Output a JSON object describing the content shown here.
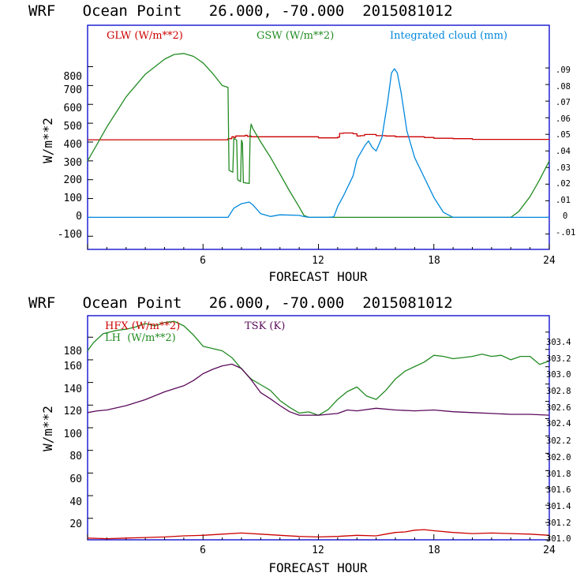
{
  "chart_data": [
    {
      "type": "line",
      "title": "WRF   Ocean Point   26.000, -70.000  2015081012",
      "xlabel": "FORECAST HOUR",
      "ylabel": "W/m**2",
      "xlim": [
        0,
        24
      ],
      "ylim": [
        -170,
        1020
      ],
      "y2lim": [
        -0.0193,
        0.1157
      ],
      "x_tick_labels": [
        "6",
        "12",
        "18",
        "24"
      ],
      "y_tick_labels": [
        "-100",
        "0",
        "100",
        "200",
        "300",
        "400",
        "500",
        "600",
        "700",
        "800"
      ],
      "y2_tick_labels": [
        "-.01",
        "0",
        ".01",
        ".02",
        ".03",
        ".04",
        ".05",
        ".06",
        ".07",
        ".08",
        ".09"
      ],
      "legend": [
        "GLW (W/m**2)",
        "GSW (W/m**2)",
        "Integrated cloud (mm)"
      ],
      "series": [
        {
          "name": "GLW (W/m**2)",
          "color": "#cc0000",
          "axis": "left",
          "step": true,
          "x": [
            0,
            7.3,
            7.5,
            7.6,
            7.7,
            8.2,
            8.3,
            8.4,
            8.5,
            12.0,
            13.0,
            13.1,
            13.3,
            13.8,
            14.0,
            14.2,
            14.4,
            15.0,
            15.5,
            16.0,
            17.0,
            17.5,
            18.0,
            19.0,
            20.0,
            24.0
          ],
          "y": [
            412,
            418,
            428,
            424,
            432,
            436,
            430,
            432,
            428,
            422,
            426,
            446,
            448,
            444,
            432,
            434,
            440,
            434,
            432,
            428,
            428,
            424,
            420,
            418,
            414,
            412
          ]
        },
        {
          "name": "GSW (W/m**2)",
          "color": "#228b22",
          "axis": "left",
          "x": [
            0,
            0.5,
            1,
            2,
            3,
            4,
            4.5,
            5,
            5.5,
            6,
            6.5,
            7,
            7.3,
            7.35,
            7.55,
            7.6,
            7.75,
            7.8,
            7.95,
            8.0,
            8.05,
            8.1,
            8.4,
            8.45,
            8.5,
            8.6,
            9.0,
            9.5,
            10.0,
            10.5,
            11.0,
            11.25,
            11.5,
            22.0,
            22.4,
            23.0,
            23.5,
            24.0
          ],
          "y": [
            300,
            390,
            480,
            640,
            760,
            840,
            865,
            870,
            855,
            820,
            765,
            700,
            690,
            250,
            240,
            420,
            410,
            200,
            190,
            410,
            395,
            185,
            180,
            450,
            495,
            470,
            400,
            320,
            230,
            140,
            55,
            10,
            0,
            0,
            30,
            110,
            200,
            300
          ]
        },
        {
          "name": "Integrated cloud (mm)",
          "color": "#0088dd",
          "axis": "right",
          "x": [
            0,
            7.3,
            7.6,
            8.0,
            8.4,
            8.6,
            9.0,
            9.5,
            10.0,
            11.0,
            11.2,
            11.5,
            12.5,
            12.8,
            13.0,
            13.3,
            13.8,
            14.0,
            14.4,
            14.6,
            14.8,
            15.0,
            15.3,
            15.6,
            15.8,
            15.95,
            16.1,
            16.3,
            16.6,
            17.0,
            17.5,
            18.0,
            18.5,
            19.0,
            24.0
          ],
          "y": [
            0,
            0,
            0.0055,
            0.0082,
            0.0092,
            0.0074,
            0.0022,
            0.0005,
            0.0015,
            0.0012,
            0.0006,
            0,
            0,
            0.0003,
            0.0065,
            0.013,
            0.025,
            0.035,
            0.043,
            0.046,
            0.042,
            0.04,
            0.048,
            0.07,
            0.087,
            0.0895,
            0.087,
            0.075,
            0.052,
            0.036,
            0.024,
            0.012,
            0.003,
            0,
            0
          ]
        }
      ]
    },
    {
      "type": "line",
      "title": "WRF   Ocean Point   26.000, -70.000  2015081012",
      "xlabel": "FORECAST HOUR",
      "ylabel": "W/m**2",
      "xlim": [
        0,
        24
      ],
      "ylim": [
        1,
        199
      ],
      "y2lim": [
        301.0,
        303.59
      ],
      "x_tick_labels": [
        "6",
        "12",
        "18",
        "24"
      ],
      "y_tick_labels": [
        "20",
        "40",
        "60",
        "80",
        "100",
        "120",
        "140",
        "160",
        "180"
      ],
      "y2_tick_labels": [
        "301.0",
        "301.2",
        "301.4",
        "301.6",
        "301.8",
        "302.0",
        "302.2",
        "302.4",
        "302.6",
        "302.8",
        "303.0",
        "303.2",
        "303.4"
      ],
      "legend": [
        "HFX (W/m**2)",
        "LH  (W/m**2)",
        "TSK (K)"
      ],
      "series": [
        {
          "name": "HFX (W/m**2)",
          "color": "#cc0000",
          "axis": "left",
          "x": [
            0,
            1,
            2,
            3,
            4,
            5,
            6,
            7,
            8,
            9,
            10,
            11,
            12,
            13,
            14,
            15,
            15.5,
            16,
            16.5,
            17,
            17.5,
            18,
            19,
            20,
            21,
            22,
            23,
            24
          ],
          "y": [
            2.5,
            2,
            2.5,
            3,
            3.5,
            4.5,
            5,
            6,
            7,
            6,
            5,
            4,
            3.5,
            4,
            5,
            4.5,
            6,
            7.5,
            8,
            9.5,
            10,
            9,
            7.5,
            6.5,
            7,
            6.5,
            6,
            5
          ]
        },
        {
          "name": "LH  (W/m**2)",
          "color": "#228b22",
          "axis": "left",
          "x": [
            0,
            0.3,
            0.8,
            1.5,
            2,
            2.5,
            3,
            3.5,
            4,
            4.5,
            5,
            5.5,
            6,
            6.5,
            7,
            7.5,
            8,
            8.5,
            9,
            9.5,
            10,
            10.5,
            11,
            11.5,
            12,
            12.5,
            13,
            13.5,
            14,
            14.5,
            15,
            15.5,
            16,
            16.5,
            17,
            17.5,
            18,
            18.5,
            19,
            19.5,
            20,
            20.5,
            21,
            21.5,
            22,
            22.5,
            23,
            23.5,
            24
          ],
          "y": [
            168,
            175,
            183,
            186,
            187,
            189,
            192,
            190,
            193,
            194,
            190,
            182,
            172,
            170,
            168,
            162,
            152,
            143,
            138,
            133,
            124,
            118,
            113,
            114,
            111,
            116,
            125,
            132,
            136,
            128,
            125,
            133,
            143,
            150,
            154,
            158,
            164,
            163,
            161,
            162,
            163,
            165,
            163,
            164,
            160,
            163,
            163,
            156,
            159
          ]
        },
        {
          "name": "TSK (K)",
          "color": "#5a0a5a",
          "axis": "right",
          "x": [
            0,
            0.5,
            1,
            2,
            3,
            4,
            5,
            5.5,
            6,
            6.5,
            7,
            7.5,
            8,
            8.5,
            9,
            9.5,
            10,
            10.5,
            11,
            12,
            13,
            13.5,
            14,
            15,
            16,
            17,
            18,
            19,
            20,
            21,
            22,
            23,
            24
          ],
          "y": [
            302.47,
            302.49,
            302.5,
            302.55,
            302.62,
            302.71,
            302.78,
            302.84,
            302.92,
            302.97,
            303.01,
            303.03,
            302.98,
            302.85,
            302.7,
            302.63,
            302.55,
            302.48,
            302.44,
            302.44,
            302.46,
            302.5,
            302.49,
            302.52,
            302.5,
            302.49,
            302.5,
            302.48,
            302.47,
            302.46,
            302.45,
            302.45,
            302.44
          ]
        }
      ]
    }
  ]
}
